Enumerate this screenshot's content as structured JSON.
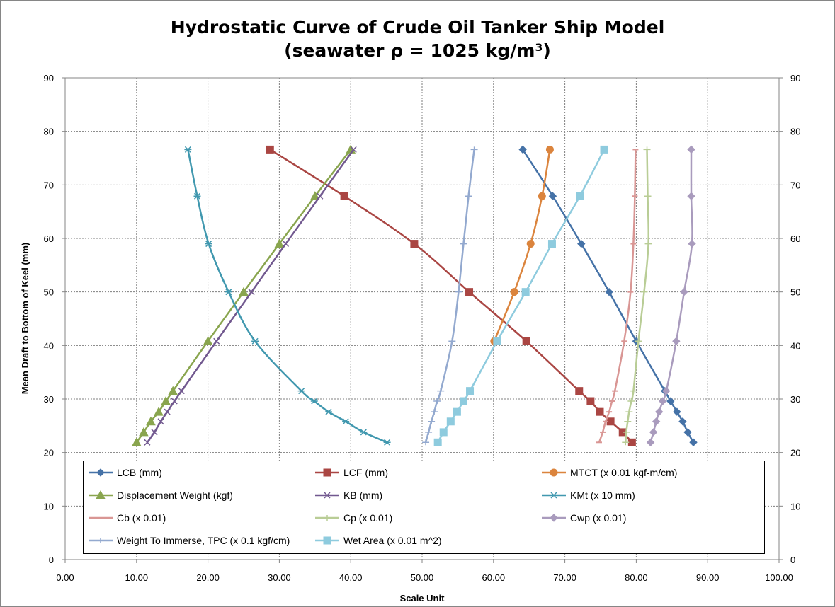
{
  "chart_data": {
    "type": "line",
    "title": "Hydrostatic Curve of Crude Oil Tanker Ship Model",
    "subtitle": "(seawater ρ = 1025 kg/m³)",
    "xlabel": "Scale Unit",
    "ylabel": "Mean Draft to Bottom of Keel (mm)",
    "xlim": [
      0,
      100
    ],
    "ylim": [
      0,
      90
    ],
    "x_ticks": [
      "0.00",
      "10.00",
      "20.00",
      "30.00",
      "40.00",
      "50.00",
      "60.00",
      "70.00",
      "80.00",
      "90.00",
      "100.00"
    ],
    "y_ticks": [
      "0",
      "10",
      "20",
      "30",
      "40",
      "50",
      "60",
      "70",
      "80",
      "90"
    ],
    "y2_ticks": [
      "0",
      "10",
      "20",
      "30",
      "40",
      "50",
      "60",
      "70",
      "80",
      "90"
    ],
    "grid": true,
    "legend_position": "bottom-inside",
    "series": [
      {
        "name": "LCB (mm)",
        "color": "#4572A7",
        "marker": "diamond",
        "points": [
          [
            88.0,
            21.9
          ],
          [
            87.2,
            23.8
          ],
          [
            86.5,
            25.8
          ],
          [
            85.7,
            27.6
          ],
          [
            84.8,
            29.6
          ],
          [
            84.0,
            31.5
          ],
          [
            80.0,
            40.8
          ],
          [
            76.2,
            50.0
          ],
          [
            72.3,
            59.0
          ],
          [
            68.3,
            67.9
          ],
          [
            64.1,
            76.6
          ]
        ]
      },
      {
        "name": "LCF (mm)",
        "color": "#AA4643",
        "marker": "square",
        "points": [
          [
            79.4,
            21.9
          ],
          [
            78.1,
            23.8
          ],
          [
            76.4,
            25.8
          ],
          [
            74.9,
            27.6
          ],
          [
            73.6,
            29.6
          ],
          [
            72.0,
            31.5
          ],
          [
            64.6,
            40.8
          ],
          [
            56.6,
            50.0
          ],
          [
            48.9,
            59.0
          ],
          [
            39.1,
            67.9
          ],
          [
            28.7,
            76.6
          ]
        ]
      },
      {
        "name": "MTCT (x 0.01 kgf-m/cm)",
        "color": "#DB843D",
        "marker": "circle",
        "points": [
          [
            60.1,
            40.8
          ],
          [
            62.9,
            50.0
          ],
          [
            65.2,
            59.0
          ],
          [
            66.8,
            67.9
          ],
          [
            67.9,
            76.6
          ]
        ]
      },
      {
        "name": "Displacement Weight (kgf)",
        "color": "#89A54E",
        "marker": "triangle",
        "points": [
          [
            10.0,
            21.9
          ],
          [
            11.0,
            23.8
          ],
          [
            12.0,
            25.8
          ],
          [
            13.1,
            27.6
          ],
          [
            14.1,
            29.6
          ],
          [
            15.1,
            31.5
          ],
          [
            20.0,
            40.8
          ],
          [
            25.0,
            50.0
          ],
          [
            30.0,
            59.0
          ],
          [
            35.0,
            67.9
          ],
          [
            40.0,
            76.6
          ]
        ]
      },
      {
        "name": "KB (mm)",
        "color": "#71588F",
        "marker": "x",
        "points": [
          [
            11.5,
            21.9
          ],
          [
            12.5,
            23.8
          ],
          [
            13.4,
            25.8
          ],
          [
            14.3,
            27.6
          ],
          [
            15.3,
            29.6
          ],
          [
            16.3,
            31.5
          ],
          [
            21.2,
            40.8
          ],
          [
            26.1,
            50.0
          ],
          [
            30.9,
            59.0
          ],
          [
            35.7,
            67.9
          ],
          [
            40.4,
            76.6
          ]
        ]
      },
      {
        "name": "KMt (x 10 mm)",
        "color": "#4198AF",
        "marker": "star",
        "points": [
          [
            45.1,
            21.9
          ],
          [
            41.8,
            23.8
          ],
          [
            39.3,
            25.8
          ],
          [
            36.9,
            27.6
          ],
          [
            34.9,
            29.6
          ],
          [
            33.1,
            31.5
          ],
          [
            26.6,
            40.8
          ],
          [
            22.9,
            50.0
          ],
          [
            20.1,
            59.0
          ],
          [
            18.5,
            67.9
          ],
          [
            17.2,
            76.6
          ]
        ]
      },
      {
        "name": "Cb (x 0.01)",
        "color": "#D99694",
        "marker": "dash",
        "points": [
          [
            74.8,
            21.9
          ],
          [
            75.3,
            23.8
          ],
          [
            75.7,
            25.8
          ],
          [
            76.2,
            27.6
          ],
          [
            76.6,
            29.6
          ],
          [
            77.0,
            31.5
          ],
          [
            78.3,
            40.8
          ],
          [
            79.2,
            50.0
          ],
          [
            79.6,
            59.0
          ],
          [
            79.8,
            67.9
          ],
          [
            79.9,
            76.6
          ]
        ]
      },
      {
        "name": "Cp (x 0.01)",
        "color": "#B9CD96",
        "marker": "plus",
        "points": [
          [
            78.5,
            21.9
          ],
          [
            78.6,
            23.8
          ],
          [
            78.8,
            25.8
          ],
          [
            79.0,
            27.6
          ],
          [
            79.3,
            29.6
          ],
          [
            79.6,
            31.5
          ],
          [
            80.3,
            40.8
          ],
          [
            81.1,
            50.0
          ],
          [
            81.7,
            59.0
          ],
          [
            81.6,
            67.9
          ],
          [
            81.5,
            76.6
          ]
        ]
      },
      {
        "name": "Cwp (x 0.01)",
        "color": "#A99BBD",
        "marker": "diamond",
        "points": [
          [
            82.0,
            21.9
          ],
          [
            82.4,
            23.8
          ],
          [
            82.8,
            25.8
          ],
          [
            83.2,
            27.6
          ],
          [
            83.7,
            29.6
          ],
          [
            84.2,
            31.5
          ],
          [
            85.6,
            40.8
          ],
          [
            86.7,
            50.0
          ],
          [
            87.8,
            59.0
          ],
          [
            87.7,
            67.9
          ],
          [
            87.7,
            76.6
          ]
        ]
      },
      {
        "name": "Weight To Immerse, TPC (x 0.1 kgf/cm)",
        "color": "#93A9CF",
        "marker": "plus",
        "points": [
          [
            50.5,
            21.9
          ],
          [
            50.9,
            23.8
          ],
          [
            51.3,
            25.8
          ],
          [
            51.7,
            27.6
          ],
          [
            52.1,
            29.6
          ],
          [
            52.6,
            31.5
          ],
          [
            54.2,
            40.8
          ],
          [
            55.1,
            50.0
          ],
          [
            55.8,
            59.0
          ],
          [
            56.5,
            67.9
          ],
          [
            57.3,
            76.6
          ]
        ]
      },
      {
        "name": "Wet Area (x 0.01 m^2)",
        "color": "#8ECBDE",
        "marker": "square",
        "points": [
          [
            52.2,
            21.9
          ],
          [
            53.0,
            23.8
          ],
          [
            54.0,
            25.8
          ],
          [
            54.9,
            27.6
          ],
          [
            55.8,
            29.6
          ],
          [
            56.7,
            31.5
          ],
          [
            60.5,
            40.8
          ],
          [
            64.5,
            50.0
          ],
          [
            68.2,
            59.0
          ],
          [
            72.1,
            67.9
          ],
          [
            75.5,
            76.6
          ]
        ]
      }
    ]
  }
}
